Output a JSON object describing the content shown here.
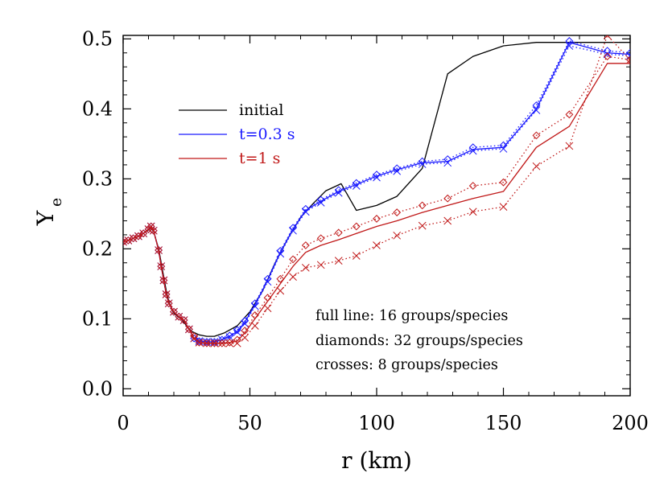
{
  "chart_data": {
    "type": "line",
    "xlabel": "r (km)",
    "ylabel": "Y",
    "ylabel_sub": "e",
    "xlim": [
      0,
      200
    ],
    "ylim": [
      -0.01,
      0.505
    ],
    "xticks": [
      0,
      50,
      100,
      150,
      200
    ],
    "yticks": [
      0.0,
      0.1,
      0.2,
      0.3,
      0.4,
      0.5
    ],
    "xtick_labels": [
      "0",
      "50",
      "100",
      "150",
      "200"
    ],
    "ytick_labels": [
      "0.0",
      "0.1",
      "0.2",
      "0.3",
      "0.4",
      "0.5"
    ],
    "colors": {
      "initial": "#000000",
      "t03": "#1a1aff",
      "t1": "#c01818"
    },
    "legend": [
      {
        "label": "initial",
        "color": "#000000"
      },
      {
        "label": "t=0.3 s",
        "color": "#1a1aff"
      },
      {
        "label": "t=1 s",
        "color": "#c01818"
      }
    ],
    "annotations": [
      "full line: 16 groups/species",
      "diamonds: 32 groups/species",
      "crosses: 8 groups/species"
    ],
    "series": [
      {
        "name": "initial",
        "group": "initial",
        "variant": "16 groups/species",
        "color": "#000000",
        "dash": "solid",
        "marker": "none",
        "x": [
          0,
          2,
          4,
          6,
          8,
          10,
          11,
          12,
          14,
          15,
          16,
          17,
          18,
          19,
          20,
          21,
          22,
          23,
          24,
          25,
          27,
          30,
          33,
          36,
          40,
          45,
          50,
          55,
          60,
          65,
          70,
          75,
          80,
          86,
          92,
          100,
          108,
          118,
          128,
          138,
          150,
          163,
          176,
          191,
          200
        ],
        "y": [
          0.21,
          0.212,
          0.215,
          0.218,
          0.222,
          0.227,
          0.23,
          0.225,
          0.2,
          0.18,
          0.16,
          0.14,
          0.125,
          0.115,
          0.108,
          0.105,
          0.102,
          0.1,
          0.095,
          0.09,
          0.082,
          0.077,
          0.075,
          0.075,
          0.08,
          0.09,
          0.11,
          0.14,
          0.18,
          0.215,
          0.245,
          0.265,
          0.283,
          0.293,
          0.255,
          0.262,
          0.275,
          0.315,
          0.45,
          0.475,
          0.49,
          0.495,
          0.495,
          0.495,
          0.495
        ]
      },
      {
        "name": "t=0.3 s",
        "group": "t03",
        "variant": "16 groups/species",
        "color": "#1a1aff",
        "dash": "solid",
        "marker": "none",
        "x": [
          0,
          2,
          4,
          6,
          8,
          10,
          11,
          12,
          14,
          15,
          16,
          17,
          18,
          20,
          22,
          24,
          26,
          28,
          30,
          33,
          36,
          39,
          42,
          45,
          48,
          52,
          57,
          62,
          67,
          72,
          78,
          85,
          92,
          100,
          108,
          118,
          128,
          138,
          150,
          163,
          176,
          191,
          200
        ],
        "y": [
          0.21,
          0.212,
          0.215,
          0.218,
          0.222,
          0.228,
          0.232,
          0.226,
          0.198,
          0.175,
          0.155,
          0.135,
          0.122,
          0.11,
          0.103,
          0.098,
          0.085,
          0.072,
          0.068,
          0.067,
          0.067,
          0.07,
          0.075,
          0.082,
          0.095,
          0.12,
          0.155,
          0.195,
          0.228,
          0.255,
          0.268,
          0.282,
          0.292,
          0.304,
          0.313,
          0.323,
          0.325,
          0.342,
          0.345,
          0.4,
          0.495,
          0.48,
          0.478
        ]
      },
      {
        "name": "t=0.3 s",
        "group": "t03",
        "variant": "32 groups/species",
        "color": "#1a1aff",
        "dash": "dotted",
        "marker": "diamond",
        "x": [
          0,
          2,
          4,
          6,
          8,
          10,
          11,
          12,
          14,
          15,
          16,
          17,
          18,
          20,
          22,
          24,
          26,
          28,
          30,
          33,
          36,
          39,
          42,
          45,
          48,
          52,
          57,
          62,
          67,
          72,
          78,
          85,
          92,
          100,
          108,
          118,
          128,
          138,
          150,
          163,
          176,
          191,
          200
        ],
        "y": [
          0.21,
          0.212,
          0.215,
          0.218,
          0.222,
          0.228,
          0.232,
          0.226,
          0.198,
          0.175,
          0.155,
          0.135,
          0.122,
          0.11,
          0.103,
          0.098,
          0.085,
          0.072,
          0.068,
          0.067,
          0.067,
          0.07,
          0.076,
          0.084,
          0.097,
          0.122,
          0.157,
          0.197,
          0.23,
          0.257,
          0.27,
          0.284,
          0.294,
          0.306,
          0.315,
          0.325,
          0.328,
          0.345,
          0.348,
          0.405,
          0.497,
          0.483,
          0.48
        ]
      },
      {
        "name": "t=0.3 s",
        "group": "t03",
        "variant": "8 groups/species",
        "color": "#1a1aff",
        "dash": "dotted",
        "marker": "cross",
        "x": [
          0,
          2,
          4,
          6,
          8,
          10,
          11,
          12,
          14,
          15,
          16,
          17,
          18,
          20,
          22,
          24,
          26,
          28,
          30,
          33,
          36,
          39,
          42,
          45,
          48,
          52,
          57,
          62,
          67,
          72,
          78,
          85,
          92,
          100,
          108,
          118,
          128,
          138,
          150,
          163,
          176,
          191,
          200
        ],
        "y": [
          0.21,
          0.212,
          0.215,
          0.218,
          0.222,
          0.228,
          0.232,
          0.226,
          0.198,
          0.175,
          0.155,
          0.135,
          0.122,
          0.11,
          0.103,
          0.098,
          0.085,
          0.072,
          0.068,
          0.067,
          0.067,
          0.07,
          0.074,
          0.081,
          0.093,
          0.118,
          0.153,
          0.193,
          0.226,
          0.253,
          0.266,
          0.28,
          0.29,
          0.302,
          0.311,
          0.321,
          0.323,
          0.34,
          0.343,
          0.398,
          0.49,
          0.478,
          0.476
        ]
      },
      {
        "name": "t=1 s",
        "group": "t1",
        "variant": "16 groups/species",
        "color": "#c01818",
        "dash": "solid",
        "marker": "none",
        "x": [
          0,
          2,
          4,
          6,
          8,
          10,
          11,
          12,
          14,
          15,
          16,
          17,
          18,
          20,
          22,
          24,
          26,
          28,
          30,
          33,
          36,
          39,
          42,
          45,
          48,
          52,
          57,
          62,
          67,
          72,
          78,
          85,
          92,
          100,
          108,
          118,
          128,
          138,
          150,
          163,
          176,
          191,
          200
        ],
        "y": [
          0.21,
          0.212,
          0.215,
          0.218,
          0.222,
          0.228,
          0.232,
          0.226,
          0.198,
          0.175,
          0.155,
          0.135,
          0.122,
          0.11,
          0.103,
          0.098,
          0.085,
          0.072,
          0.066,
          0.065,
          0.065,
          0.065,
          0.066,
          0.068,
          0.08,
          0.1,
          0.125,
          0.15,
          0.175,
          0.195,
          0.205,
          0.213,
          0.222,
          0.232,
          0.24,
          0.252,
          0.262,
          0.272,
          0.282,
          0.345,
          0.375,
          0.465,
          0.465
        ]
      },
      {
        "name": "t=1 s",
        "group": "t1",
        "variant": "32 groups/species",
        "color": "#c01818",
        "dash": "dotted",
        "marker": "diamond",
        "x": [
          0,
          2,
          4,
          6,
          8,
          10,
          11,
          12,
          14,
          15,
          16,
          17,
          18,
          20,
          22,
          24,
          26,
          28,
          30,
          33,
          36,
          39,
          42,
          45,
          48,
          52,
          57,
          62,
          67,
          72,
          78,
          85,
          92,
          100,
          108,
          118,
          128,
          138,
          150,
          163,
          176,
          191,
          200
        ],
        "y": [
          0.21,
          0.212,
          0.215,
          0.218,
          0.222,
          0.228,
          0.232,
          0.226,
          0.198,
          0.175,
          0.155,
          0.135,
          0.122,
          0.11,
          0.103,
          0.098,
          0.085,
          0.075,
          0.066,
          0.065,
          0.065,
          0.065,
          0.066,
          0.07,
          0.083,
          0.105,
          0.13,
          0.157,
          0.185,
          0.205,
          0.215,
          0.223,
          0.232,
          0.243,
          0.252,
          0.262,
          0.272,
          0.29,
          0.295,
          0.362,
          0.392,
          0.475,
          0.47
        ]
      },
      {
        "name": "t=1 s",
        "group": "t1",
        "variant": "8 groups/species",
        "color": "#c01818",
        "dash": "dotted",
        "marker": "cross",
        "x": [
          0,
          2,
          4,
          6,
          8,
          10,
          11,
          12,
          14,
          15,
          16,
          17,
          18,
          20,
          22,
          24,
          26,
          28,
          30,
          33,
          36,
          39,
          42,
          45,
          48,
          52,
          57,
          62,
          67,
          72,
          78,
          85,
          92,
          100,
          108,
          118,
          128,
          138,
          150,
          163,
          176,
          191,
          200
        ],
        "y": [
          0.21,
          0.212,
          0.215,
          0.218,
          0.222,
          0.228,
          0.232,
          0.226,
          0.198,
          0.175,
          0.155,
          0.135,
          0.122,
          0.11,
          0.103,
          0.098,
          0.085,
          0.072,
          0.066,
          0.065,
          0.065,
          0.065,
          0.065,
          0.065,
          0.073,
          0.09,
          0.115,
          0.14,
          0.16,
          0.173,
          0.177,
          0.183,
          0.19,
          0.205,
          0.219,
          0.233,
          0.24,
          0.253,
          0.26,
          0.318,
          0.347,
          0.505,
          0.47
        ]
      }
    ]
  }
}
